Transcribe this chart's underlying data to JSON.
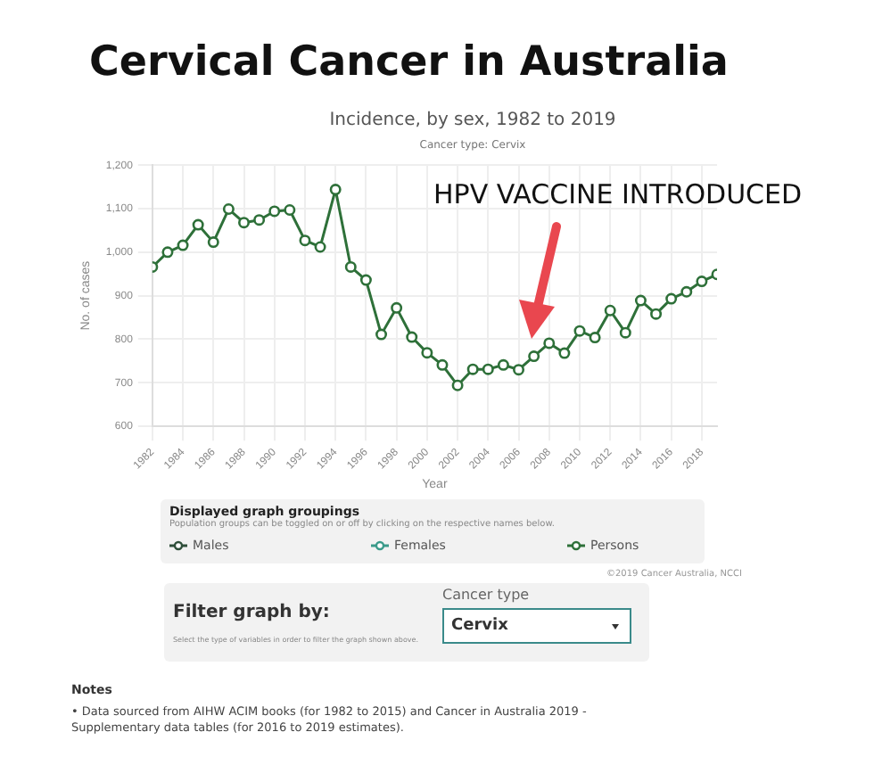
{
  "chart_data": {
    "type": "line",
    "title": "Cervical Cancer in Australia",
    "subtitle": "Incidence, by sex, 1982 to 2019",
    "xlabel": "Year",
    "ylabel": "No. of cases",
    "legend_title": "Displayed graph groupings",
    "x": [
      1982,
      1983,
      1984,
      1985,
      1986,
      1987,
      1988,
      1989,
      1990,
      1991,
      1992,
      1993,
      1994,
      1995,
      1996,
      1997,
      1998,
      1999,
      2000,
      2001,
      2002,
      2003,
      2004,
      2005,
      2006,
      2007,
      2008,
      2009,
      2010,
      2011,
      2012,
      2013,
      2014,
      2015,
      2016,
      2017,
      2018,
      2019
    ],
    "series": [
      {
        "name": "Males",
        "color": "#2f4f3a",
        "values": [
          null,
          null,
          null,
          null,
          null,
          null,
          null,
          null,
          null,
          null,
          null,
          null,
          null,
          null,
          null,
          null,
          null,
          null,
          null,
          null,
          null,
          null,
          null,
          null,
          null,
          null,
          null,
          null,
          null,
          null,
          null,
          null,
          null,
          null,
          null,
          null,
          null,
          null
        ]
      },
      {
        "name": "Females",
        "color": "#3a9a8a",
        "values": [
          null,
          null,
          null,
          null,
          null,
          null,
          null,
          null,
          null,
          null,
          null,
          null,
          null,
          null,
          null,
          null,
          null,
          null,
          null,
          null,
          null,
          null,
          null,
          null,
          null,
          null,
          null,
          null,
          null,
          null,
          null,
          null,
          null,
          null,
          null,
          null,
          null,
          null
        ]
      },
      {
        "name": "Persons",
        "color": "#2e7039",
        "values": [
          966,
          1000,
          1016,
          1063,
          1023,
          1099,
          1068,
          1074,
          1094,
          1097,
          1027,
          1012,
          1144,
          966,
          936,
          811,
          872,
          805,
          769,
          741,
          694,
          731,
          731,
          741,
          730,
          761,
          791,
          768,
          819,
          804,
          866,
          815,
          889,
          858,
          893,
          909,
          933,
          949
        ]
      }
    ],
    "xlim": [
      1982,
      2019
    ],
    "xticks": [
      1982,
      1984,
      1986,
      1988,
      1990,
      1992,
      1994,
      1996,
      1998,
      2000,
      2002,
      2004,
      2006,
      2008,
      2010,
      2012,
      2014,
      2016,
      2018
    ],
    "ylim": [
      600,
      1200
    ],
    "yticks": [
      {
        "value": 600,
        "label": "600"
      },
      {
        "value": 700,
        "label": "700"
      },
      {
        "value": 800,
        "label": "800"
      },
      {
        "value": 900,
        "label": "900"
      },
      {
        "value": 1000,
        "label": "1,000"
      },
      {
        "value": 1100,
        "label": "1,100"
      },
      {
        "value": 1200,
        "label": "1,200"
      }
    ],
    "grid": true,
    "legend": "bottom",
    "marker": "circle",
    "line_style": "solid",
    "annotations": [
      "Cancer type: Cervix",
      "HPV VACCINE INTRODUCED",
      "Population groups can be toggled on or off by clicking on the respective names below.",
      "©2019 Cancer Australia, NCCI",
      "Filter graph by:",
      "Select the type of variables in order to filter the graph shown above.",
      "Cancer type",
      "Cervix",
      "Notes",
      "• Data sourced from AIHW ACIM books (for 1982 to 2015) and Cancer in Australia 2019 - Supplementary data tables (for 2016 to 2019 estimates)."
    ]
  }
}
